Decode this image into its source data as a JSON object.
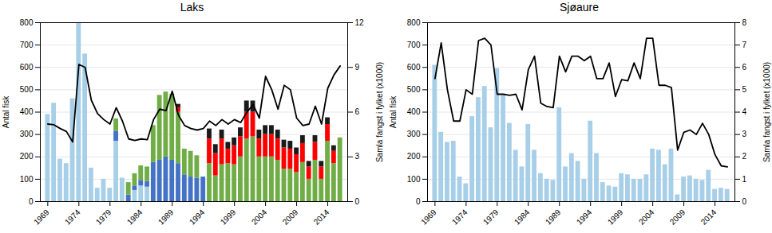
{
  "chart_data": [
    {
      "type": "bar",
      "title": "Laks",
      "stacked": true,
      "grid": true,
      "ylabel": "Antal fisk",
      "y2label": "Samla fangst i fylket (x1000)",
      "x": [
        1969,
        1970,
        1971,
        1972,
        1973,
        1974,
        1975,
        1976,
        1977,
        1978,
        1979,
        1980,
        1981,
        1982,
        1983,
        1984,
        1985,
        1986,
        1987,
        1988,
        1989,
        1990,
        1991,
        1992,
        1993,
        1994,
        1995,
        1996,
        1997,
        1998,
        1999,
        2000,
        2001,
        2002,
        2003,
        2004,
        2005,
        2006,
        2007,
        2008,
        2009,
        2010,
        2011,
        2012,
        2013,
        2014,
        2015,
        2016
      ],
      "xlim": [
        1967.8,
        2017.2
      ],
      "xticks": [
        1969,
        1974,
        1979,
        1984,
        1989,
        1994,
        1999,
        2004,
        2009,
        2014
      ],
      "ylim": [
        0,
        800
      ],
      "yticks": [
        0,
        100,
        200,
        300,
        400,
        500,
        600,
        700,
        800
      ],
      "y2lim": [
        0,
        12
      ],
      "y2ticks": [
        0,
        3,
        6,
        9,
        12
      ],
      "series": [
        {
          "color": "#a8cfe8",
          "values": [
            390,
            440,
            190,
            170,
            460,
            800,
            660,
            150,
            60,
            100,
            60,
            270,
            105,
            0,
            50,
            70,
            65,
            0,
            0,
            0,
            0,
            0,
            0,
            0,
            0,
            0,
            0,
            0,
            0,
            0,
            0,
            0,
            0,
            0,
            0,
            0,
            0,
            0,
            0,
            0,
            0,
            0,
            0,
            0,
            0,
            0,
            0,
            0
          ]
        },
        {
          "color": "#4472c4",
          "values": [
            0,
            0,
            0,
            0,
            0,
            0,
            0,
            0,
            0,
            0,
            0,
            45,
            0,
            30,
            20,
            25,
            25,
            175,
            185,
            200,
            185,
            170,
            120,
            110,
            105,
            110,
            0,
            0,
            0,
            0,
            0,
            0,
            0,
            0,
            0,
            0,
            0,
            0,
            0,
            0,
            0,
            0,
            0,
            0,
            0,
            0,
            0,
            0
          ]
        },
        {
          "color": "#70ad47",
          "values": [
            0,
            0,
            0,
            0,
            0,
            0,
            0,
            0,
            0,
            0,
            0,
            55,
            0,
            55,
            55,
            65,
            65,
            165,
            290,
            290,
            295,
            230,
            115,
            115,
            100,
            0,
            170,
            115,
            165,
            170,
            165,
            200,
            280,
            290,
            200,
            200,
            200,
            185,
            145,
            145,
            130,
            175,
            100,
            185,
            100,
            270,
            170,
            285
          ]
        },
        {
          "color": "#ff0000",
          "values": [
            0,
            0,
            0,
            0,
            0,
            0,
            0,
            0,
            0,
            0,
            0,
            0,
            0,
            0,
            0,
            0,
            0,
            0,
            0,
            0,
            0,
            20,
            0,
            0,
            0,
            0,
            110,
            100,
            115,
            65,
            85,
            90,
            120,
            110,
            80,
            100,
            100,
            95,
            95,
            90,
            80,
            85,
            55,
            80,
            55,
            75,
            55,
            0
          ]
        },
        {
          "color": "#1a1a1a",
          "values": [
            0,
            0,
            0,
            0,
            0,
            0,
            0,
            0,
            0,
            0,
            0,
            0,
            0,
            0,
            0,
            0,
            0,
            0,
            0,
            0,
            0,
            15,
            0,
            0,
            0,
            0,
            45,
            40,
            40,
            30,
            35,
            40,
            50,
            50,
            40,
            40,
            40,
            40,
            35,
            35,
            30,
            35,
            25,
            30,
            25,
            30,
            25,
            0
          ]
        },
        {
          "type": "line",
          "axis": "y2",
          "color": "#000000",
          "values": [
            5.2,
            5.15,
            4.9,
            4.7,
            4.0,
            9.2,
            9.0,
            6.8,
            5.9,
            5.5,
            5.2,
            6.3,
            5.4,
            4.2,
            4.1,
            4.2,
            4.15,
            5.5,
            6.2,
            6.1,
            7.4,
            5.8,
            5.1,
            4.9,
            4.8,
            4.9,
            5.4,
            5.1,
            5.5,
            5.2,
            5.5,
            5.3,
            6.0,
            6.5,
            5.6,
            8.4,
            7.5,
            6.2,
            7.8,
            7.5,
            5.6,
            5.1,
            5.2,
            6.4,
            5.2,
            7.6,
            8.5,
            9.1
          ]
        }
      ]
    },
    {
      "type": "bar",
      "title": "Sjøaure",
      "stacked": true,
      "grid": true,
      "ylabel": "Antal fisk",
      "y2label": "Samla fangst i fylket (x1000)",
      "x": [
        1969,
        1970,
        1971,
        1972,
        1973,
        1974,
        1975,
        1976,
        1977,
        1978,
        1979,
        1980,
        1981,
        1982,
        1983,
        1984,
        1985,
        1986,
        1987,
        1988,
        1989,
        1990,
        1991,
        1992,
        1993,
        1994,
        1995,
        1996,
        1997,
        1998,
        1999,
        2000,
        2001,
        2002,
        2003,
        2004,
        2005,
        2006,
        2007,
        2008,
        2009,
        2010,
        2011,
        2012,
        2013,
        2014,
        2015,
        2016
      ],
      "xlim": [
        1967.8,
        2017.2
      ],
      "xticks": [
        1969,
        1974,
        1979,
        1984,
        1989,
        1994,
        1999,
        2004,
        2009,
        2014
      ],
      "ylim": [
        0,
        800
      ],
      "yticks": [
        0,
        100,
        200,
        300,
        400,
        500,
        600,
        700,
        800
      ],
      "y2lim": [
        0,
        8
      ],
      "y2ticks": [
        0,
        1,
        2,
        3,
        4,
        5,
        6,
        7,
        8
      ],
      "series": [
        {
          "color": "#a8cfe8",
          "values": [
            610,
            310,
            265,
            270,
            110,
            80,
            380,
            465,
            515,
            330,
            595,
            475,
            350,
            230,
            155,
            345,
            230,
            125,
            100,
            95,
            420,
            155,
            215,
            180,
            100,
            360,
            215,
            85,
            70,
            65,
            125,
            120,
            100,
            100,
            120,
            235,
            230,
            165,
            235,
            30,
            110,
            115,
            100,
            95,
            140,
            55,
            60,
            55
          ]
        },
        {
          "type": "line",
          "axis": "y2",
          "color": "#000000",
          "values": [
            5.5,
            7.1,
            5.0,
            3.6,
            3.6,
            5.0,
            4.8,
            7.2,
            7.3,
            7.0,
            4.8,
            4.8,
            4.75,
            4.8,
            4.1,
            5.9,
            6.5,
            4.4,
            4.25,
            4.2,
            6.5,
            5.8,
            6.5,
            6.5,
            6.3,
            6.5,
            5.5,
            5.5,
            6.2,
            4.7,
            5.45,
            5.4,
            6.2,
            5.5,
            7.3,
            7.3,
            5.2,
            5.2,
            5.1,
            2.3,
            3.1,
            3.2,
            3.0,
            3.5,
            3.0,
            2.1,
            1.6,
            1.55
          ]
        }
      ]
    }
  ]
}
